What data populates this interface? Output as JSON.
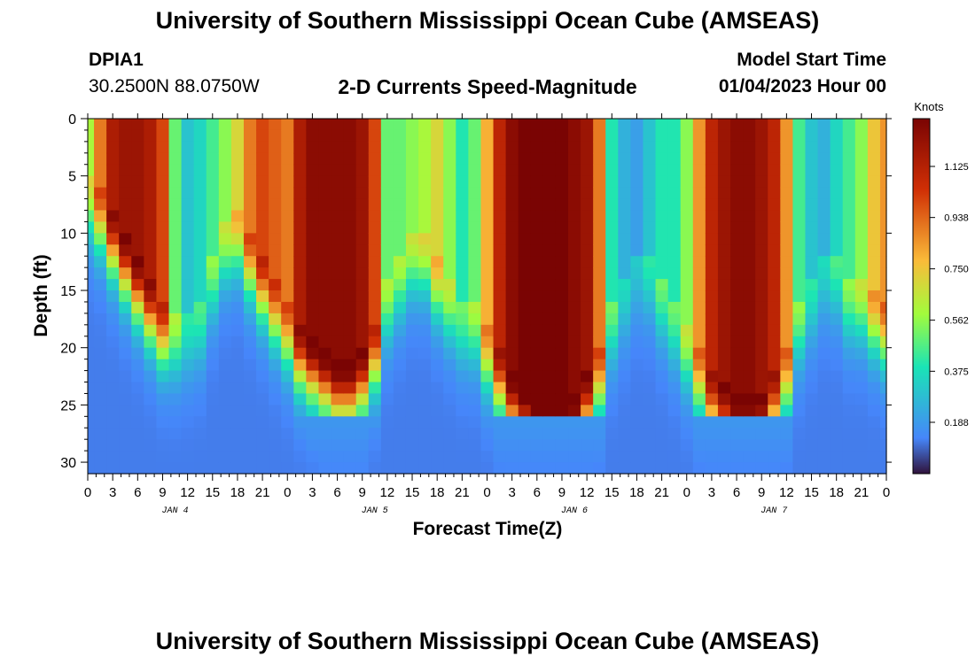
{
  "header": {
    "title": "University of Southern Mississippi Ocean Cube (AMSEAS)",
    "station_id": "DPIA1",
    "station_coords": "30.2500N  88.0750W",
    "plot_title": "2-D Currents Speed-Magnitude",
    "model_start_label": "Model Start Time",
    "model_start_value": "01/04/2023 Hour 00"
  },
  "footer": {
    "title": "University of Southern Mississippi Ocean Cube (AMSEAS)"
  },
  "chart_data": {
    "type": "heatmap",
    "title": "2-D Currents Speed-Magnitude",
    "xlabel": "Forecast Time(Z)",
    "ylabel": "Depth (ft)",
    "xlim": [
      0,
      96
    ],
    "ylim": [
      0,
      31
    ],
    "x_ticks": [
      "0",
      "3",
      "6",
      "9",
      "12",
      "15",
      "18",
      "21",
      "0",
      "3",
      "6",
      "9",
      "12",
      "15",
      "18",
      "21",
      "0",
      "3",
      "6",
      "9",
      "12",
      "15",
      "18",
      "21",
      "0",
      "3",
      "6",
      "9",
      "12",
      "15",
      "18",
      "21",
      "0"
    ],
    "y_ticks": [
      "0",
      "5",
      "10",
      "15",
      "20",
      "25",
      "30"
    ],
    "day_labels": [
      "JAN 4",
      "JAN 5",
      "JAN 6",
      "JAN 7"
    ],
    "colorbar": {
      "label": "Knots",
      "ticks": [
        "1.125",
        "0.938",
        "0.750",
        "0.562",
        "0.375",
        "0.188"
      ],
      "range": [
        0,
        1.3
      ]
    },
    "colors": {
      "dark_blue": "#30123b",
      "blue": "#4686fa",
      "cyan": "#1ae4b6",
      "green": "#a2fc3c",
      "yellow": "#fabb39",
      "red": "#d02f05",
      "dark_red": "#7a0403"
    },
    "columns_hours": [
      0,
      1.5,
      3,
      4.5,
      6,
      7.5,
      9,
      10.5,
      12,
      13.5,
      15,
      16.5,
      18,
      19.5,
      21,
      22.5,
      24,
      25.5,
      27,
      28.5,
      30,
      31.5,
      33,
      34.5,
      36,
      37.5,
      39,
      40.5,
      42,
      43.5,
      45,
      46.5,
      48,
      49.5,
      51,
      52.5,
      54,
      55.5,
      57,
      58.5,
      60,
      61.5,
      63,
      64.5,
      66,
      67.5,
      69,
      70.5,
      72,
      73.5,
      75,
      76.5,
      78,
      79.5,
      81,
      82.5,
      84,
      85.5,
      87,
      88.5,
      90,
      91.5,
      93,
      94.5,
      96
    ],
    "surface_speed_knots": [
      0.6,
      0.9,
      1.15,
      1.2,
      1.2,
      1.15,
      1.0,
      0.5,
      0.3,
      0.35,
      0.45,
      0.55,
      0.7,
      0.9,
      1.0,
      0.95,
      0.9,
      1.15,
      1.25,
      1.25,
      1.25,
      1.25,
      1.2,
      1.0,
      0.5,
      0.5,
      0.55,
      0.6,
      0.7,
      0.55,
      0.4,
      0.5,
      0.8,
      1.1,
      1.25,
      1.3,
      1.3,
      1.3,
      1.3,
      1.25,
      1.2,
      0.9,
      0.4,
      0.25,
      0.2,
      0.3,
      0.4,
      0.4,
      0.55,
      0.85,
      1.1,
      1.2,
      1.25,
      1.25,
      1.2,
      1.1,
      0.85,
      0.45,
      0.3,
      0.25,
      0.35,
      0.45,
      0.55,
      0.75,
      0.85
    ],
    "peak_depth_ft": [
      5,
      6,
      8,
      10,
      12,
      14,
      16,
      17,
      17,
      16,
      12,
      9,
      8,
      10,
      12,
      14,
      16,
      18,
      19,
      20,
      21,
      21,
      20,
      18,
      14,
      12,
      10,
      10,
      12,
      14,
      16,
      16,
      18,
      20,
      22,
      23,
      24,
      24,
      24,
      24,
      22,
      20,
      16,
      14,
      12,
      12,
      14,
      16,
      18,
      20,
      22,
      23,
      24,
      24,
      24,
      22,
      20,
      16,
      14,
      12,
      12,
      14,
      14,
      15,
      16
    ]
  }
}
